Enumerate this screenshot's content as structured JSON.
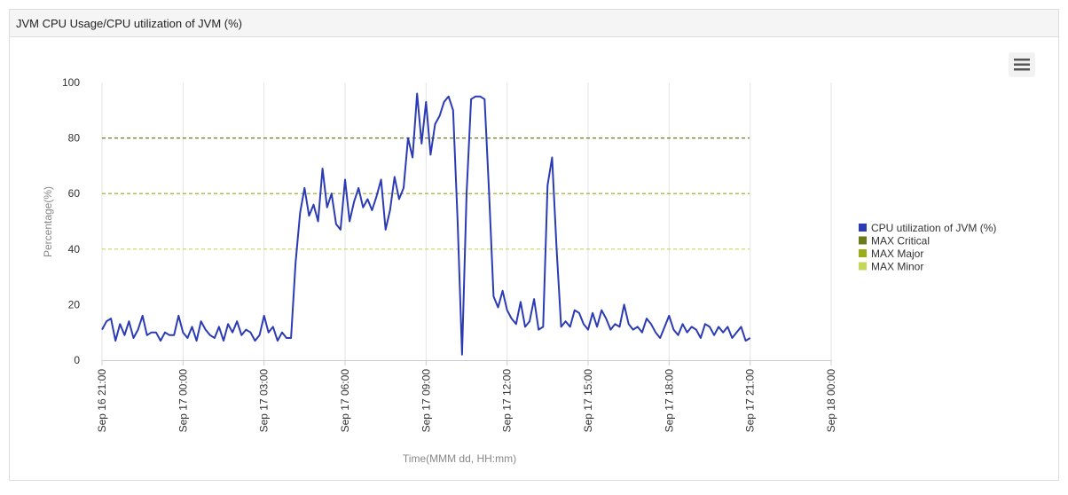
{
  "chart_data": {
    "type": "line",
    "title": "JVM CPU Usage/CPU utilization of JVM (%)",
    "xlabel": "Time(MMM dd, HH:mm)",
    "ylabel": "Percentage(%)",
    "xlim": [
      "Sep 16 21:00",
      "Sep 18 00:00"
    ],
    "xticks": [
      "Sep 16 21:00",
      "Sep 17 00:00",
      "Sep 17 03:00",
      "Sep 17 06:00",
      "Sep 17 09:00",
      "Sep 17 12:00",
      "Sep 17 15:00",
      "Sep 17 18:00",
      "Sep 17 21:00",
      "Sep 18 00:00"
    ],
    "ylim": [
      0,
      100
    ],
    "yticks": [
      0,
      20,
      40,
      60,
      80,
      100
    ],
    "grid": true,
    "legend": "right",
    "x": [
      "Sep 16 21:00",
      "Sep 16 21:10",
      "Sep 16 21:20",
      "Sep 16 21:30",
      "Sep 16 21:40",
      "Sep 16 21:50",
      "Sep 16 22:00",
      "Sep 16 22:10",
      "Sep 16 22:20",
      "Sep 16 22:30",
      "Sep 16 22:40",
      "Sep 16 22:50",
      "Sep 16 23:00",
      "Sep 16 23:10",
      "Sep 16 23:20",
      "Sep 16 23:30",
      "Sep 16 23:40",
      "Sep 16 23:50",
      "Sep 17 00:00",
      "Sep 17 00:10",
      "Sep 17 00:20",
      "Sep 17 00:30",
      "Sep 17 00:40",
      "Sep 17 00:50",
      "Sep 17 01:00",
      "Sep 17 01:10",
      "Sep 17 01:20",
      "Sep 17 01:30",
      "Sep 17 01:40",
      "Sep 17 01:50",
      "Sep 17 02:00",
      "Sep 17 02:10",
      "Sep 17 02:20",
      "Sep 17 02:30",
      "Sep 17 02:40",
      "Sep 17 02:50",
      "Sep 17 03:00",
      "Sep 17 03:10",
      "Sep 17 03:20",
      "Sep 17 03:30",
      "Sep 17 03:40",
      "Sep 17 03:50",
      "Sep 17 04:00",
      "Sep 17 04:10",
      "Sep 17 04:20",
      "Sep 17 04:30",
      "Sep 17 04:40",
      "Sep 17 04:50",
      "Sep 17 05:00",
      "Sep 17 05:10",
      "Sep 17 05:20",
      "Sep 17 05:30",
      "Sep 17 05:40",
      "Sep 17 05:50",
      "Sep 17 06:00",
      "Sep 17 06:10",
      "Sep 17 06:20",
      "Sep 17 06:30",
      "Sep 17 06:40",
      "Sep 17 06:50",
      "Sep 17 07:00",
      "Sep 17 07:10",
      "Sep 17 07:20",
      "Sep 17 07:30",
      "Sep 17 07:40",
      "Sep 17 07:50",
      "Sep 17 08:00",
      "Sep 17 08:10",
      "Sep 17 08:20",
      "Sep 17 08:30",
      "Sep 17 08:40",
      "Sep 17 08:50",
      "Sep 17 09:00",
      "Sep 17 09:10",
      "Sep 17 09:20",
      "Sep 17 09:30",
      "Sep 17 09:40",
      "Sep 17 09:50",
      "Sep 17 10:00",
      "Sep 17 10:10",
      "Sep 17 10:20",
      "Sep 17 10:30",
      "Sep 17 10:40",
      "Sep 17 10:50",
      "Sep 17 11:00",
      "Sep 17 11:10",
      "Sep 17 11:20",
      "Sep 17 11:30",
      "Sep 17 11:40",
      "Sep 17 11:50",
      "Sep 17 12:00",
      "Sep 17 12:10",
      "Sep 17 12:20",
      "Sep 17 12:30",
      "Sep 17 12:40",
      "Sep 17 12:50",
      "Sep 17 13:00",
      "Sep 17 13:10",
      "Sep 17 13:20",
      "Sep 17 13:30",
      "Sep 17 13:40",
      "Sep 17 13:50",
      "Sep 17 14:00",
      "Sep 17 14:10",
      "Sep 17 14:20",
      "Sep 17 14:30",
      "Sep 17 14:40",
      "Sep 17 14:50",
      "Sep 17 15:00",
      "Sep 17 15:10",
      "Sep 17 15:20",
      "Sep 17 15:30",
      "Sep 17 15:40",
      "Sep 17 15:50",
      "Sep 17 16:00",
      "Sep 17 16:10",
      "Sep 17 16:20",
      "Sep 17 16:30",
      "Sep 17 16:40",
      "Sep 17 16:50",
      "Sep 17 17:00",
      "Sep 17 17:10",
      "Sep 17 17:20",
      "Sep 17 17:30",
      "Sep 17 17:40",
      "Sep 17 17:50",
      "Sep 17 18:00",
      "Sep 17 18:10",
      "Sep 17 18:20",
      "Sep 17 18:30",
      "Sep 17 18:40",
      "Sep 17 18:50",
      "Sep 17 19:00",
      "Sep 17 19:10",
      "Sep 17 19:20",
      "Sep 17 19:30",
      "Sep 17 19:40",
      "Sep 17 19:50",
      "Sep 17 20:00",
      "Sep 17 20:10",
      "Sep 17 20:20",
      "Sep 17 20:30",
      "Sep 17 20:40",
      "Sep 17 20:50",
      "Sep 17 21:00"
    ],
    "series": [
      {
        "name": "CPU utilization of JVM (%)",
        "color": "#2b3bb5",
        "values": [
          11,
          14,
          15,
          7,
          13,
          9,
          14,
          8,
          11,
          16,
          9,
          10,
          10,
          7,
          10,
          9,
          9,
          16,
          10,
          8,
          12,
          7,
          14,
          11,
          9,
          8,
          12,
          7,
          13,
          10,
          14,
          9,
          11,
          10,
          7,
          9,
          16,
          10,
          12,
          7,
          10,
          8,
          8,
          35,
          53,
          62,
          52,
          56,
          50,
          69,
          55,
          60,
          49,
          47,
          65,
          50,
          57,
          62,
          55,
          58,
          54,
          59,
          65,
          47,
          54,
          66,
          58,
          62,
          80,
          73,
          96,
          78,
          93,
          74,
          85,
          88,
          93,
          95,
          90,
          50,
          2,
          60,
          94,
          95,
          95,
          94,
          60,
          23,
          19,
          25,
          18,
          15,
          13,
          21,
          12,
          14,
          22,
          11,
          12,
          63,
          73,
          40,
          12,
          14,
          12,
          18,
          17,
          13,
          11,
          17,
          12,
          18,
          15,
          11,
          13,
          12,
          20,
          13,
          11,
          12,
          10,
          15,
          13,
          10,
          8,
          12,
          16,
          11,
          9,
          13,
          10,
          12,
          11,
          8,
          13,
          12,
          9,
          12,
          10,
          12,
          8,
          10,
          12,
          7,
          8
        ]
      }
    ],
    "thresholds": [
      {
        "name": "MAX Critical",
        "color": "#6b7a1a",
        "value": 80
      },
      {
        "name": "MAX Major",
        "color": "#9aac17",
        "value": 60
      },
      {
        "name": "MAX Minor",
        "color": "#c6d65c",
        "value": 40
      }
    ]
  }
}
